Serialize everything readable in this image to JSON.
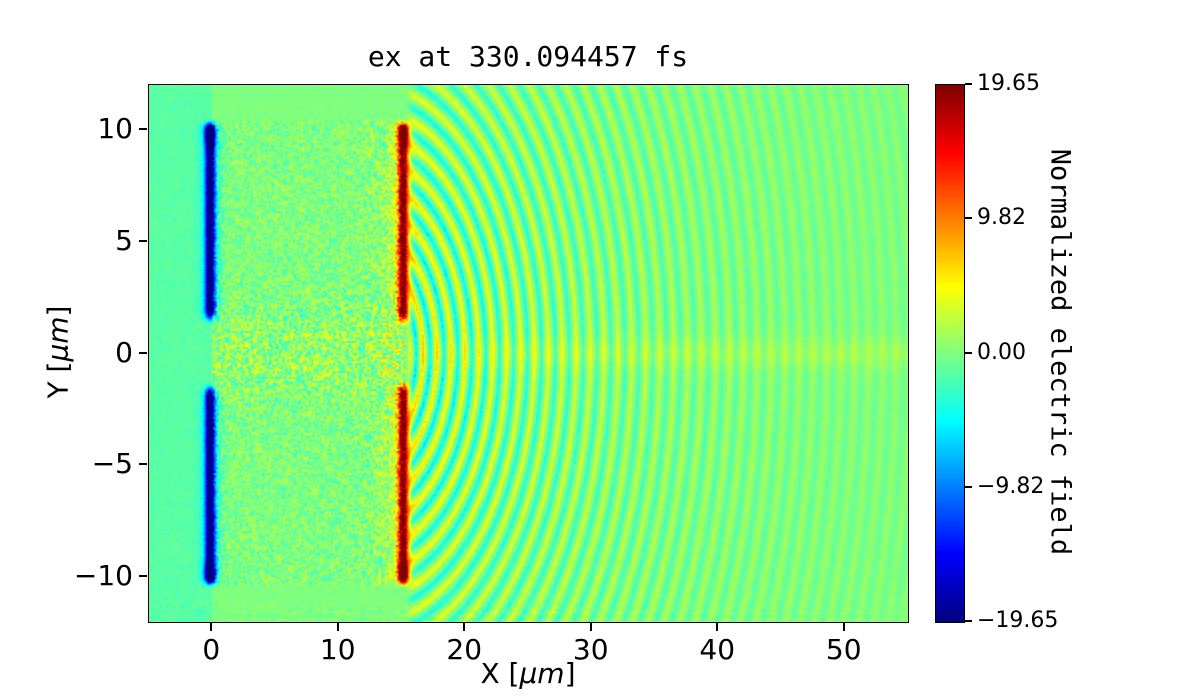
{
  "chart_data": {
    "type": "heatmap",
    "title": "ex at 330.094457 fs",
    "xlabel": "X [μm]",
    "ylabel": "Y [μm]",
    "xlabel_parts": {
      "pre": "X [",
      "unit": "μm",
      "post": "]"
    },
    "ylabel_parts": {
      "pre": "Y [",
      "unit": "μm",
      "post": "]"
    },
    "colorbar_label": "Normalized electric field",
    "colormap": "jet",
    "clim": [
      -19.65,
      19.65
    ],
    "x_range": [
      -5,
      55
    ],
    "y_range": [
      -12,
      12
    ],
    "x_ticks": [
      {
        "v": 0,
        "label": "0"
      },
      {
        "v": 10,
        "label": "10"
      },
      {
        "v": 20,
        "label": "20"
      },
      {
        "v": 30,
        "label": "30"
      },
      {
        "v": 40,
        "label": "40"
      },
      {
        "v": 50,
        "label": "50"
      }
    ],
    "y_ticks": [
      {
        "v": 10,
        "label": "10"
      },
      {
        "v": 5,
        "label": "5"
      },
      {
        "v": 0,
        "label": "0"
      },
      {
        "v": -5,
        "label": "−5"
      },
      {
        "v": -10,
        "label": "−10"
      }
    ],
    "colorbar_ticks": [
      {
        "v": 19.65,
        "label": "19.65"
      },
      {
        "v": 9.82,
        "label": "9.82"
      },
      {
        "v": 0,
        "label": "0.00"
      },
      {
        "v": -9.82,
        "label": "−9.82"
      },
      {
        "v": -19.65,
        "label": "−19.65"
      }
    ],
    "features": {
      "background_value": 0,
      "left_region": {
        "x_max": 0,
        "value": -1.6
      },
      "plasma_region": {
        "x_min": 0,
        "x_max": 15.3,
        "y_min": -10.4,
        "y_max": 10.4,
        "noise_amplitude": 5.0,
        "axis_bias": 1.0
      },
      "blue_sheet": {
        "x": -0.15,
        "width": 0.28,
        "y_gap": 1.6,
        "y_extent": 10.1,
        "value": -18
      },
      "red_sheet": {
        "x": 15.1,
        "width": 0.28,
        "y_gap": 1.5,
        "y_extent": 10.1,
        "value": 18
      },
      "waves": {
        "source_x": 12,
        "source_y": 0,
        "start_x": 15.5,
        "wavelength": 1.1,
        "amplitude": 6.5,
        "decay_length": 19,
        "axis_line_amplitude": 1.3
      }
    }
  }
}
